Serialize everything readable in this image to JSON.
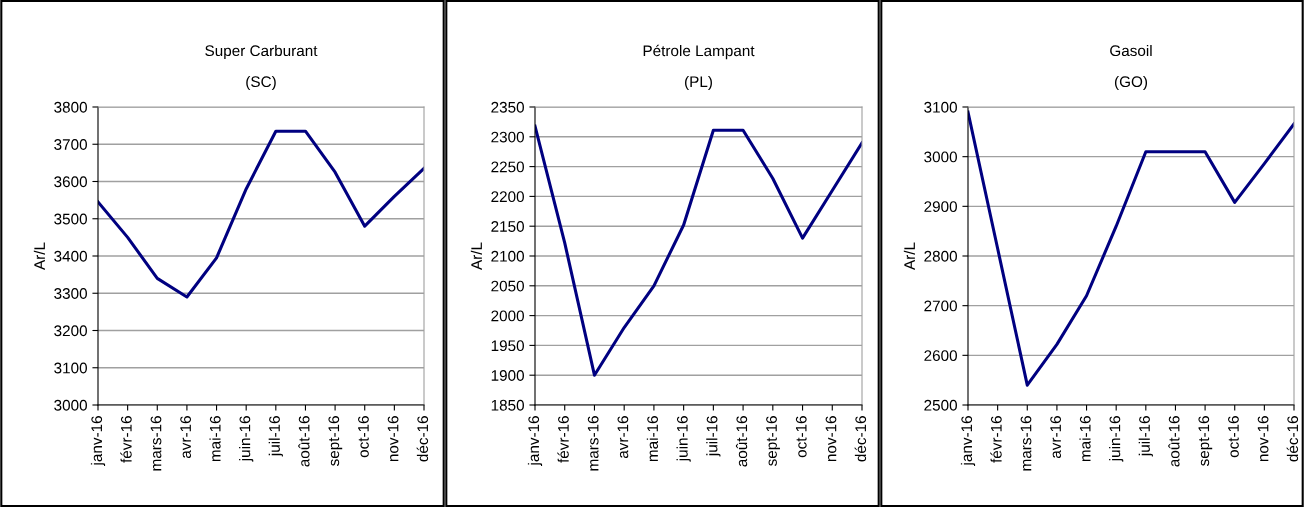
{
  "chart_data": [
    {
      "type": "line",
      "title": "Super Carburant",
      "subtitle": "(SC)",
      "ylabel": "Ar/L",
      "categories": [
        "janv-16",
        "févr-16",
        "mars-16",
        "avr-16",
        "mai-16",
        "juin-16",
        "juil-16",
        "août-16",
        "sept-16",
        "oct-16",
        "nov-16",
        "déc-16"
      ],
      "series": [
        {
          "color": "#000080",
          "values": [
            3545,
            3450,
            3340,
            3290,
            3395,
            3580,
            3735,
            3735,
            3625,
            3480,
            3560,
            3635
          ]
        }
      ],
      "ylim": [
        3000,
        3800
      ],
      "yticks": [
        3000,
        3100,
        3200,
        3300,
        3400,
        3500,
        3600,
        3700,
        3800
      ],
      "grid": "y",
      "legend": false,
      "marker": "none",
      "line_style": "solid"
    },
    {
      "type": "line",
      "title": "Pétrole Lampant",
      "subtitle": "(PL)",
      "ylabel": "Ar/L",
      "categories": [
        "janv-16",
        "févr-16",
        "mars-16",
        "avr-16",
        "mai-16",
        "juin-16",
        "juil-16",
        "août-16",
        "sept-16",
        "oct-16",
        "nov-16",
        "déc-16"
      ],
      "series": [
        {
          "color": "#000080",
          "values": [
            2318,
            2122,
            1900,
            1980,
            2050,
            2152,
            2311,
            2311,
            2230,
            2130,
            2210,
            2290
          ]
        }
      ],
      "ylim": [
        1850,
        2350
      ],
      "yticks": [
        1850,
        1900,
        1950,
        2000,
        2050,
        2100,
        2150,
        2200,
        2250,
        2300,
        2350
      ],
      "grid": "y",
      "legend": false,
      "marker": "none",
      "line_style": "solid"
    },
    {
      "type": "line",
      "title": "Gasoil",
      "subtitle": "(GO)",
      "ylabel": "Ar/L",
      "categories": [
        "janv-16",
        "févr-16",
        "mars-16",
        "avr-16",
        "mai-16",
        "juin-16",
        "juil-16",
        "août-16",
        "sept-16",
        "oct-16",
        "nov-16",
        "déc-16"
      ],
      "series": [
        {
          "color": "#000080",
          "values": [
            3090,
            2815,
            2540,
            2622,
            2720,
            2860,
            3010,
            3010,
            3010,
            2908,
            2986,
            3066
          ]
        }
      ],
      "ylim": [
        2500,
        3100
      ],
      "yticks": [
        2500,
        2600,
        2700,
        2800,
        2900,
        3000,
        3100
      ],
      "grid": "y",
      "legend": false,
      "marker": "none",
      "line_style": "solid"
    }
  ]
}
